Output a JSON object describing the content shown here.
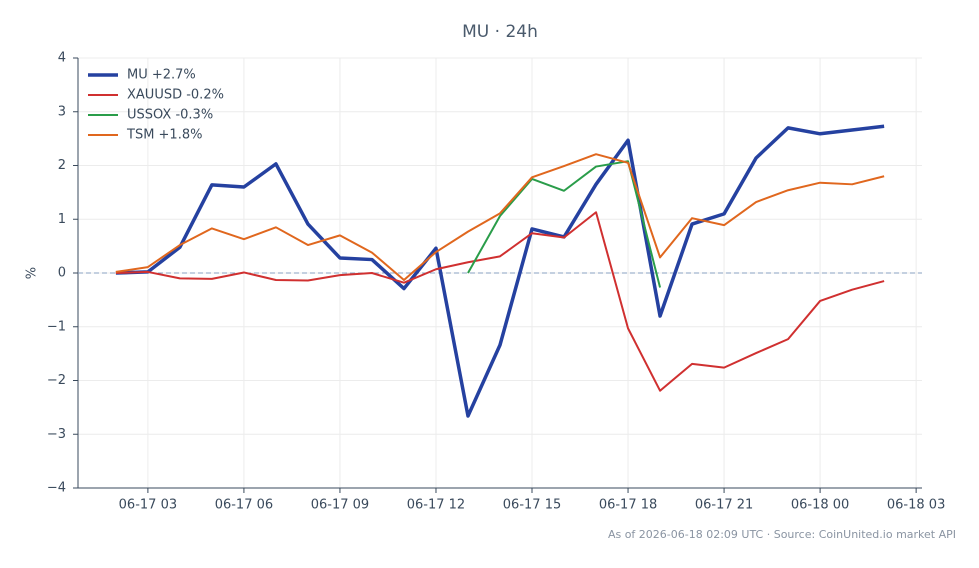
{
  "chart_data": {
    "type": "line",
    "title": "MU · 24h",
    "ylabel": "%",
    "footnote": "As of 2026-06-18 02:09 UTC · Source: CoinUnited.io market API",
    "x": [
      "06-17 02",
      "06-17 03",
      "06-17 04",
      "06-17 05",
      "06-17 06",
      "06-17 07",
      "06-17 08",
      "06-17 09",
      "06-17 10",
      "06-17 11",
      "06-17 12",
      "06-17 13",
      "06-17 14",
      "06-17 15",
      "06-17 16",
      "06-17 17",
      "06-17 18",
      "06-17 19",
      "06-17 20",
      "06-17 21",
      "06-17 22",
      "06-17 23",
      "06-18 00",
      "06-18 01",
      "06-18 02"
    ],
    "series": [
      {
        "name": "MU +2.7%",
        "color": "#2541a0",
        "width": 3.5,
        "values": [
          0,
          0.02,
          0.48,
          1.64,
          1.6,
          2.03,
          0.91,
          0.28,
          0.25,
          -0.29,
          0.46,
          -2.66,
          -1.34,
          0.82,
          0.67,
          1.65,
          2.47,
          -0.8,
          0.91,
          1.1,
          2.14,
          2.7,
          2.59,
          2.66,
          2.73
        ]
      },
      {
        "name": "XAUUSD -0.2%",
        "color": "#d03030",
        "width": 2,
        "values": [
          0,
          0.02,
          -0.1,
          -0.11,
          0.01,
          -0.13,
          -0.14,
          -0.04,
          0,
          -0.18,
          0.07,
          0.2,
          0.31,
          0.74,
          0.66,
          1.13,
          -1.03,
          -2.19,
          -1.69,
          -1.76,
          -1.49,
          -1.23,
          -0.52,
          -0.31,
          -0.15
        ]
      },
      {
        "name": "USSOX -0.3%",
        "color": "#2a9d4a",
        "width": 2,
        "values": [
          null,
          null,
          null,
          null,
          null,
          null,
          null,
          null,
          null,
          null,
          null,
          0,
          1.06,
          1.75,
          1.53,
          1.98,
          2.08,
          -0.27,
          null,
          null,
          null,
          null,
          null,
          null,
          null
        ]
      },
      {
        "name": "TSM +1.8%",
        "color": "#e0671e",
        "width": 2,
        "values": [
          0.02,
          0.11,
          0.52,
          0.83,
          0.63,
          0.85,
          0.52,
          0.7,
          0.38,
          -0.13,
          0.39,
          0.77,
          1.11,
          1.78,
          1.99,
          2.21,
          2.05,
          0.29,
          1.02,
          0.89,
          1.32,
          1.54,
          1.68,
          1.65,
          1.8
        ]
      }
    ],
    "xlim": [
      "06-17 00:49",
      "06-18 03:11"
    ],
    "xticks": [
      "06-17 03",
      "06-17 06",
      "06-17 09",
      "06-17 12",
      "06-17 15",
      "06-17 18",
      "06-17 21",
      "06-18 00",
      "06-18 03"
    ],
    "ylim": [
      -4,
      4
    ],
    "yticks": [
      {
        "value": -4,
        "label": "−4"
      },
      {
        "value": -3,
        "label": "−3"
      },
      {
        "value": -2,
        "label": "−2"
      },
      {
        "value": -1,
        "label": "−1"
      },
      0,
      1,
      2,
      3,
      4
    ],
    "hline": 0,
    "grid": true,
    "legend": "upper-left"
  }
}
